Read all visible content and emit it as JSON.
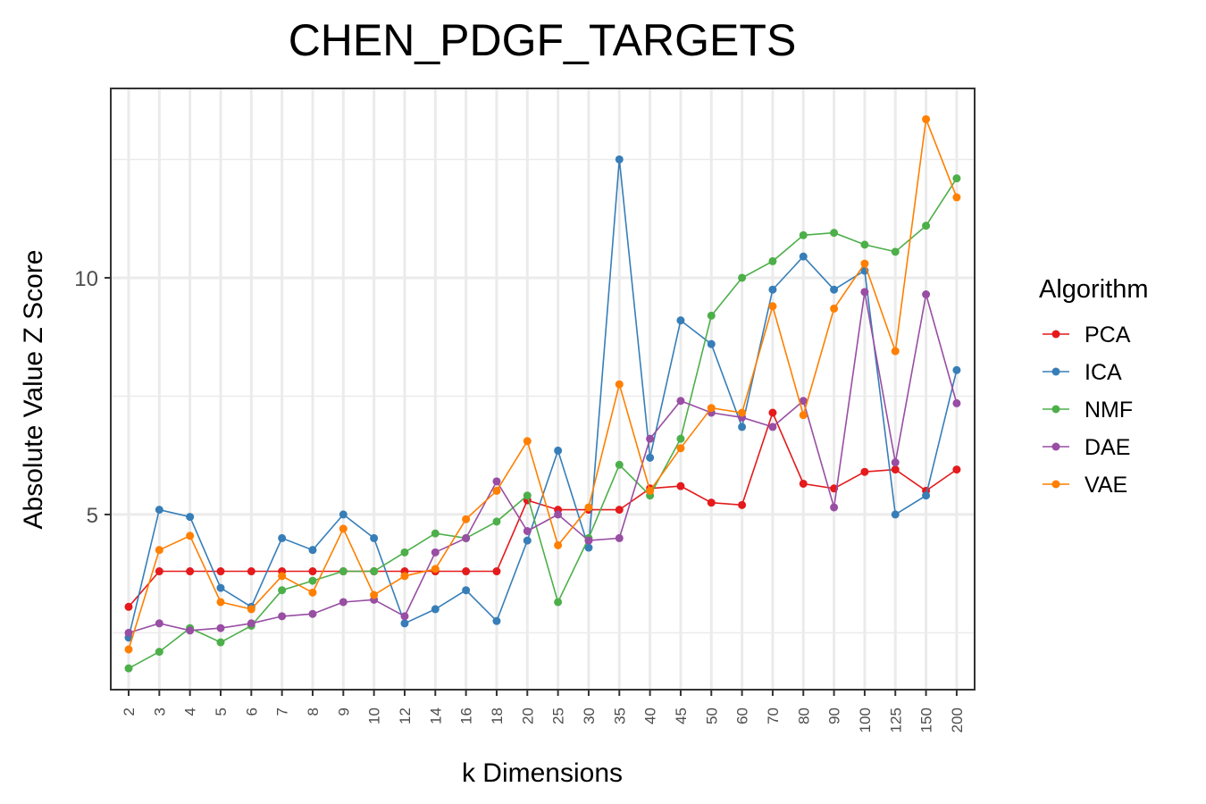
{
  "chart_data": {
    "type": "line",
    "title": "CHEN_PDGF_TARGETS",
    "xlabel": "k Dimensions",
    "ylabel": "Absolute Value Z Score",
    "categories": [
      "2",
      "3",
      "4",
      "5",
      "6",
      "7",
      "8",
      "9",
      "10",
      "12",
      "14",
      "16",
      "18",
      "20",
      "25",
      "30",
      "35",
      "40",
      "45",
      "50",
      "60",
      "70",
      "80",
      "90",
      "100",
      "125",
      "150",
      "200"
    ],
    "yticks": [
      5,
      10
    ],
    "ylim": [
      1.3,
      14.0
    ],
    "grid": true,
    "legend": {
      "title": "Algorithm",
      "position": "right"
    },
    "series": [
      {
        "name": "PCA",
        "color": "#E41A1C",
        "values": [
          3.05,
          3.8,
          3.8,
          3.8,
          3.8,
          3.8,
          3.8,
          3.8,
          3.8,
          3.8,
          3.8,
          3.8,
          3.8,
          5.3,
          5.1,
          5.1,
          5.1,
          5.55,
          5.6,
          5.25,
          5.2,
          7.15,
          5.65,
          5.55,
          5.9,
          5.95,
          5.5,
          5.95
        ]
      },
      {
        "name": "ICA",
        "color": "#377EB8",
        "values": [
          2.4,
          5.1,
          4.95,
          3.45,
          3.05,
          4.5,
          4.25,
          5.0,
          4.5,
          2.7,
          3.0,
          3.4,
          2.75,
          4.45,
          6.35,
          4.3,
          12.5,
          6.2,
          9.1,
          8.6,
          6.85,
          9.75,
          10.45,
          9.75,
          10.15,
          5.0,
          5.4,
          8.05
        ]
      },
      {
        "name": "NMF",
        "color": "#4DAF4A",
        "values": [
          1.75,
          2.1,
          2.6,
          2.3,
          2.65,
          3.4,
          3.6,
          3.8,
          3.8,
          4.2,
          4.6,
          4.5,
          4.85,
          5.4,
          3.15,
          4.5,
          6.05,
          5.4,
          6.6,
          9.2,
          10.0,
          10.35,
          10.9,
          10.95,
          10.7,
          10.55,
          11.1,
          12.1
        ]
      },
      {
        "name": "DAE",
        "color": "#984EA3",
        "values": [
          2.5,
          2.7,
          2.55,
          2.6,
          2.7,
          2.85,
          2.9,
          3.15,
          3.2,
          2.85,
          4.2,
          4.5,
          5.7,
          4.65,
          5.0,
          4.45,
          4.5,
          6.6,
          7.4,
          7.15,
          7.05,
          6.85,
          7.4,
          5.15,
          9.7,
          6.1,
          9.65,
          7.35
        ]
      },
      {
        "name": "VAE",
        "color": "#FF7F00",
        "values": [
          2.15,
          4.25,
          4.55,
          3.15,
          3.0,
          3.7,
          3.35,
          4.7,
          3.3,
          3.7,
          3.85,
          4.9,
          5.5,
          6.55,
          4.35,
          5.15,
          7.75,
          5.5,
          6.4,
          7.25,
          7.15,
          9.4,
          7.1,
          9.35,
          10.3,
          8.45,
          13.35,
          11.7
        ]
      }
    ]
  }
}
